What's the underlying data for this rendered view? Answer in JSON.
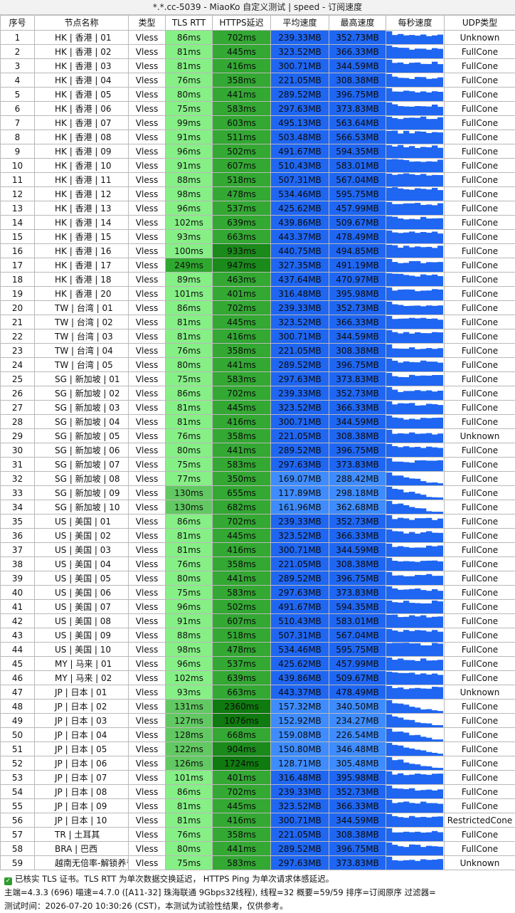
{
  "window_title": "*.*.cc-5039 - MiaoKo 自定义测试 | speed - 订阅速度",
  "headers": [
    "序号",
    "节点名称",
    "类型",
    "TLS RTT",
    "HTTPS延迟",
    "平均速度",
    "最高速度",
    "每秒速度",
    "UDP类型"
  ],
  "rows": [
    [
      "1",
      "HK | 香港 | 01",
      "Vless",
      "86ms",
      "702ms",
      "239.33MB",
      "352.73MB",
      "Unknown"
    ],
    [
      "2",
      "HK | 香港 | 02",
      "Vless",
      "81ms",
      "445ms",
      "323.52MB",
      "366.33MB",
      "FullCone"
    ],
    [
      "3",
      "HK | 香港 | 03",
      "Vless",
      "81ms",
      "416ms",
      "300.71MB",
      "344.59MB",
      "FullCone"
    ],
    [
      "4",
      "HK | 香港 | 04",
      "Vless",
      "76ms",
      "358ms",
      "221.05MB",
      "308.38MB",
      "FullCone"
    ],
    [
      "5",
      "HK | 香港 | 05",
      "Vless",
      "80ms",
      "441ms",
      "289.52MB",
      "396.75MB",
      "FullCone"
    ],
    [
      "6",
      "HK | 香港 | 06",
      "Vless",
      "75ms",
      "583ms",
      "297.63MB",
      "373.83MB",
      "FullCone"
    ],
    [
      "7",
      "HK | 香港 | 07",
      "Vless",
      "99ms",
      "603ms",
      "495.13MB",
      "563.64MB",
      "FullCone"
    ],
    [
      "8",
      "HK | 香港 | 08",
      "Vless",
      "91ms",
      "511ms",
      "503.48MB",
      "566.53MB",
      "FullCone"
    ],
    [
      "9",
      "HK | 香港 | 09",
      "Vless",
      "96ms",
      "502ms",
      "491.67MB",
      "594.35MB",
      "FullCone"
    ],
    [
      "10",
      "HK | 香港 | 10",
      "Vless",
      "91ms",
      "607ms",
      "510.43MB",
      "583.01MB",
      "FullCone"
    ],
    [
      "11",
      "HK | 香港 | 11",
      "Vless",
      "88ms",
      "518ms",
      "507.31MB",
      "567.04MB",
      "FullCone"
    ],
    [
      "12",
      "HK | 香港 | 12",
      "Vless",
      "98ms",
      "478ms",
      "534.46MB",
      "595.75MB",
      "FullCone"
    ],
    [
      "13",
      "HK | 香港 | 13",
      "Vless",
      "96ms",
      "537ms",
      "425.62MB",
      "457.99MB",
      "FullCone"
    ],
    [
      "14",
      "HK | 香港 | 14",
      "Vless",
      "102ms",
      "639ms",
      "439.86MB",
      "509.67MB",
      "FullCone"
    ],
    [
      "15",
      "HK | 香港 | 15",
      "Vless",
      "93ms",
      "663ms",
      "443.37MB",
      "478.49MB",
      "FullCone"
    ],
    [
      "16",
      "HK | 香港 | 16",
      "Vless",
      "100ms",
      "933ms",
      "440.75MB",
      "494.85MB",
      "FullCone"
    ],
    [
      "17",
      "HK | 香港 | 17",
      "Vless",
      "249ms",
      "947ms",
      "327.35MB",
      "491.19MB",
      "FullCone"
    ],
    [
      "18",
      "HK | 香港 | 18",
      "Vless",
      "89ms",
      "463ms",
      "437.64MB",
      "470.97MB",
      "FullCone"
    ],
    [
      "19",
      "HK | 香港 | 20",
      "Vless",
      "101ms",
      "401ms",
      "316.48MB",
      "395.98MB",
      "FullCone"
    ],
    [
      "20",
      "TW   | 台湾 | 01",
      "Vless",
      "86ms",
      "702ms",
      "239.33MB",
      "352.73MB",
      "FullCone"
    ],
    [
      "21",
      "TW   | 台湾 | 02",
      "Vless",
      "81ms",
      "445ms",
      "323.52MB",
      "366.33MB",
      "FullCone"
    ],
    [
      "22",
      "TW | 台湾 | 03",
      "Vless",
      "81ms",
      "416ms",
      "300.71MB",
      "344.59MB",
      "FullCone"
    ],
    [
      "23",
      "TW | 台湾 | 04",
      "Vless",
      "76ms",
      "358ms",
      "221.05MB",
      "308.38MB",
      "FullCone"
    ],
    [
      "24",
      "TW | 台湾 | 05",
      "Vless",
      "80ms",
      "441ms",
      "289.52MB",
      "396.75MB",
      "FullCone"
    ],
    [
      "25",
      "SG | 新加坡 | 01",
      "Vless",
      "75ms",
      "583ms",
      "297.63MB",
      "373.83MB",
      "FullCone"
    ],
    [
      "26",
      "SG | 新加坡 | 02",
      "Vless",
      "86ms",
      "702ms",
      "239.33MB",
      "352.73MB",
      "FullCone"
    ],
    [
      "27",
      "SG | 新加坡 | 03",
      "Vless",
      "81ms",
      "445ms",
      "323.52MB",
      "366.33MB",
      "FullCone"
    ],
    [
      "28",
      "SG | 新加坡 | 04",
      "Vless",
      "81ms",
      "416ms",
      "300.71MB",
      "344.59MB",
      "FullCone"
    ],
    [
      "29",
      "SG | 新加坡 | 05",
      "Vless",
      "76ms",
      "358ms",
      "221.05MB",
      "308.38MB",
      "Unknown"
    ],
    [
      "30",
      "SG | 新加坡 | 06",
      "Vless",
      "80ms",
      "441ms",
      "289.52MB",
      "396.75MB",
      "FullCone"
    ],
    [
      "31",
      "SG | 新加坡 | 07",
      "Vless",
      "75ms",
      "583ms",
      "297.63MB",
      "373.83MB",
      "FullCone"
    ],
    [
      "32",
      "SG | 新加坡 | 08",
      "Vless",
      "77ms",
      "350ms",
      "169.07MB",
      "288.42MB",
      "FullCone"
    ],
    [
      "33",
      "SG | 新加坡 | 09",
      "Vless",
      "130ms",
      "655ms",
      "117.89MB",
      "298.18MB",
      "FullCone"
    ],
    [
      "34",
      "SG | 新加坡 | 10",
      "Vless",
      "130ms",
      "682ms",
      "161.96MB",
      "362.68MB",
      "FullCone"
    ],
    [
      "35",
      "US | 美国 | 01",
      "Vless",
      "86ms",
      "702ms",
      "239.33MB",
      "352.73MB",
      "FullCone"
    ],
    [
      "36",
      "US | 美国 | 02",
      "Vless",
      "81ms",
      "445ms",
      "323.52MB",
      "366.33MB",
      "FullCone"
    ],
    [
      "37",
      "US | 美国 | 03",
      "Vless",
      "81ms",
      "416ms",
      "300.71MB",
      "344.59MB",
      "FullCone"
    ],
    [
      "38",
      "US | 美国 | 04",
      "Vless",
      "76ms",
      "358ms",
      "221.05MB",
      "308.38MB",
      "FullCone"
    ],
    [
      "39",
      "US | 美国 | 05",
      "Vless",
      "80ms",
      "441ms",
      "289.52MB",
      "396.75MB",
      "FullCone"
    ],
    [
      "40",
      "US | 美国 | 06",
      "Vless",
      "75ms",
      "583ms",
      "297.63MB",
      "373.83MB",
      "FullCone"
    ],
    [
      "41",
      "US | 美国 | 07",
      "Vless",
      "96ms",
      "502ms",
      "491.67MB",
      "594.35MB",
      "FullCone"
    ],
    [
      "42",
      "US | 美国 | 08",
      "Vless",
      "91ms",
      "607ms",
      "510.43MB",
      "583.01MB",
      "FullCone"
    ],
    [
      "43",
      "US | 美国 | 09",
      "Vless",
      "88ms",
      "518ms",
      "507.31MB",
      "567.04MB",
      "FullCone"
    ],
    [
      "44",
      "US | 美国 | 10",
      "Vless",
      "98ms",
      "478ms",
      "534.46MB",
      "595.75MB",
      "FullCone"
    ],
    [
      "45",
      "MY | 马来 | 01",
      "Vless",
      "96ms",
      "537ms",
      "425.62MB",
      "457.99MB",
      "FullCone"
    ],
    [
      "46",
      "MY | 马来 | 02",
      "Vless",
      "102ms",
      "639ms",
      "439.86MB",
      "509.67MB",
      "FullCone"
    ],
    [
      "47",
      "JP | 日本 | 01",
      "Vless",
      "93ms",
      "663ms",
      "443.37MB",
      "478.49MB",
      "Unknown"
    ],
    [
      "48",
      "JP | 日本 | 02",
      "Vless",
      "131ms",
      "2360ms",
      "157.32MB",
      "340.50MB",
      "FullCone"
    ],
    [
      "49",
      "JP | 日本 | 03",
      "Vless",
      "127ms",
      "1076ms",
      "152.92MB",
      "234.27MB",
      "FullCone"
    ],
    [
      "50",
      "JP | 日本 | 04",
      "Vless",
      "128ms",
      "668ms",
      "159.08MB",
      "226.54MB",
      "FullCone"
    ],
    [
      "51",
      "JP | 日本 | 05",
      "Vless",
      "122ms",
      "904ms",
      "150.80MB",
      "346.48MB",
      "FullCone"
    ],
    [
      "52",
      "JP | 日本 | 06",
      "Vless",
      "126ms",
      "1724ms",
      "128.71MB",
      "305.48MB",
      "FullCone"
    ],
    [
      "53",
      "JP | 日本 | 07",
      "Vless",
      "101ms",
      "401ms",
      "316.48MB",
      "395.98MB",
      "FullCone"
    ],
    [
      "54",
      "JP | 日本 | 08",
      "Vless",
      "86ms",
      "702ms",
      "239.33MB",
      "352.73MB",
      "FullCone"
    ],
    [
      "55",
      "JP | 日本 | 09",
      "Vless",
      "81ms",
      "445ms",
      "323.52MB",
      "366.33MB",
      "FullCone"
    ],
    [
      "56",
      "JP | 日本 | 10",
      "Vless",
      "81ms",
      "416ms",
      "300.71MB",
      "344.59MB",
      "RestrictedCone"
    ],
    [
      "57",
      "TR | 土耳其",
      "Vless",
      "76ms",
      "358ms",
      "221.05MB",
      "308.38MB",
      "FullCone"
    ],
    [
      "58",
      "BRA | 巴西",
      "Vless",
      "80ms",
      "441ms",
      "289.52MB",
      "396.75MB",
      "FullCone"
    ],
    [
      "59",
      "越南无倍率-解锁养号",
      "Vless",
      "75ms",
      "583ms",
      "297.63MB",
      "373.83MB",
      "Unknown"
    ]
  ],
  "colors": {
    "rtt_fast": "#86ef86",
    "https": "#33a833",
    "speed": "#1f66f2",
    "spark": "#1f66f2"
  },
  "footer": {
    "check_icon": "checkbox-checked-icon",
    "line1": "已核实 TLS 证书。TLS RTT 为单次数据交换延迟， HTTPS Ping 为单次请求体感延迟。",
    "line2": "主端=4.3.3 (696) 喵速=4.7.0 ([A11-32] 珠海联通 9Gbps32线程), 线程=32 概要=59/59 排序=订阅原序 过滤器=",
    "line3": "测试时间：2026-07-20 10:30:26 (CST)，本测试为试验性结果，仅供参考。"
  }
}
